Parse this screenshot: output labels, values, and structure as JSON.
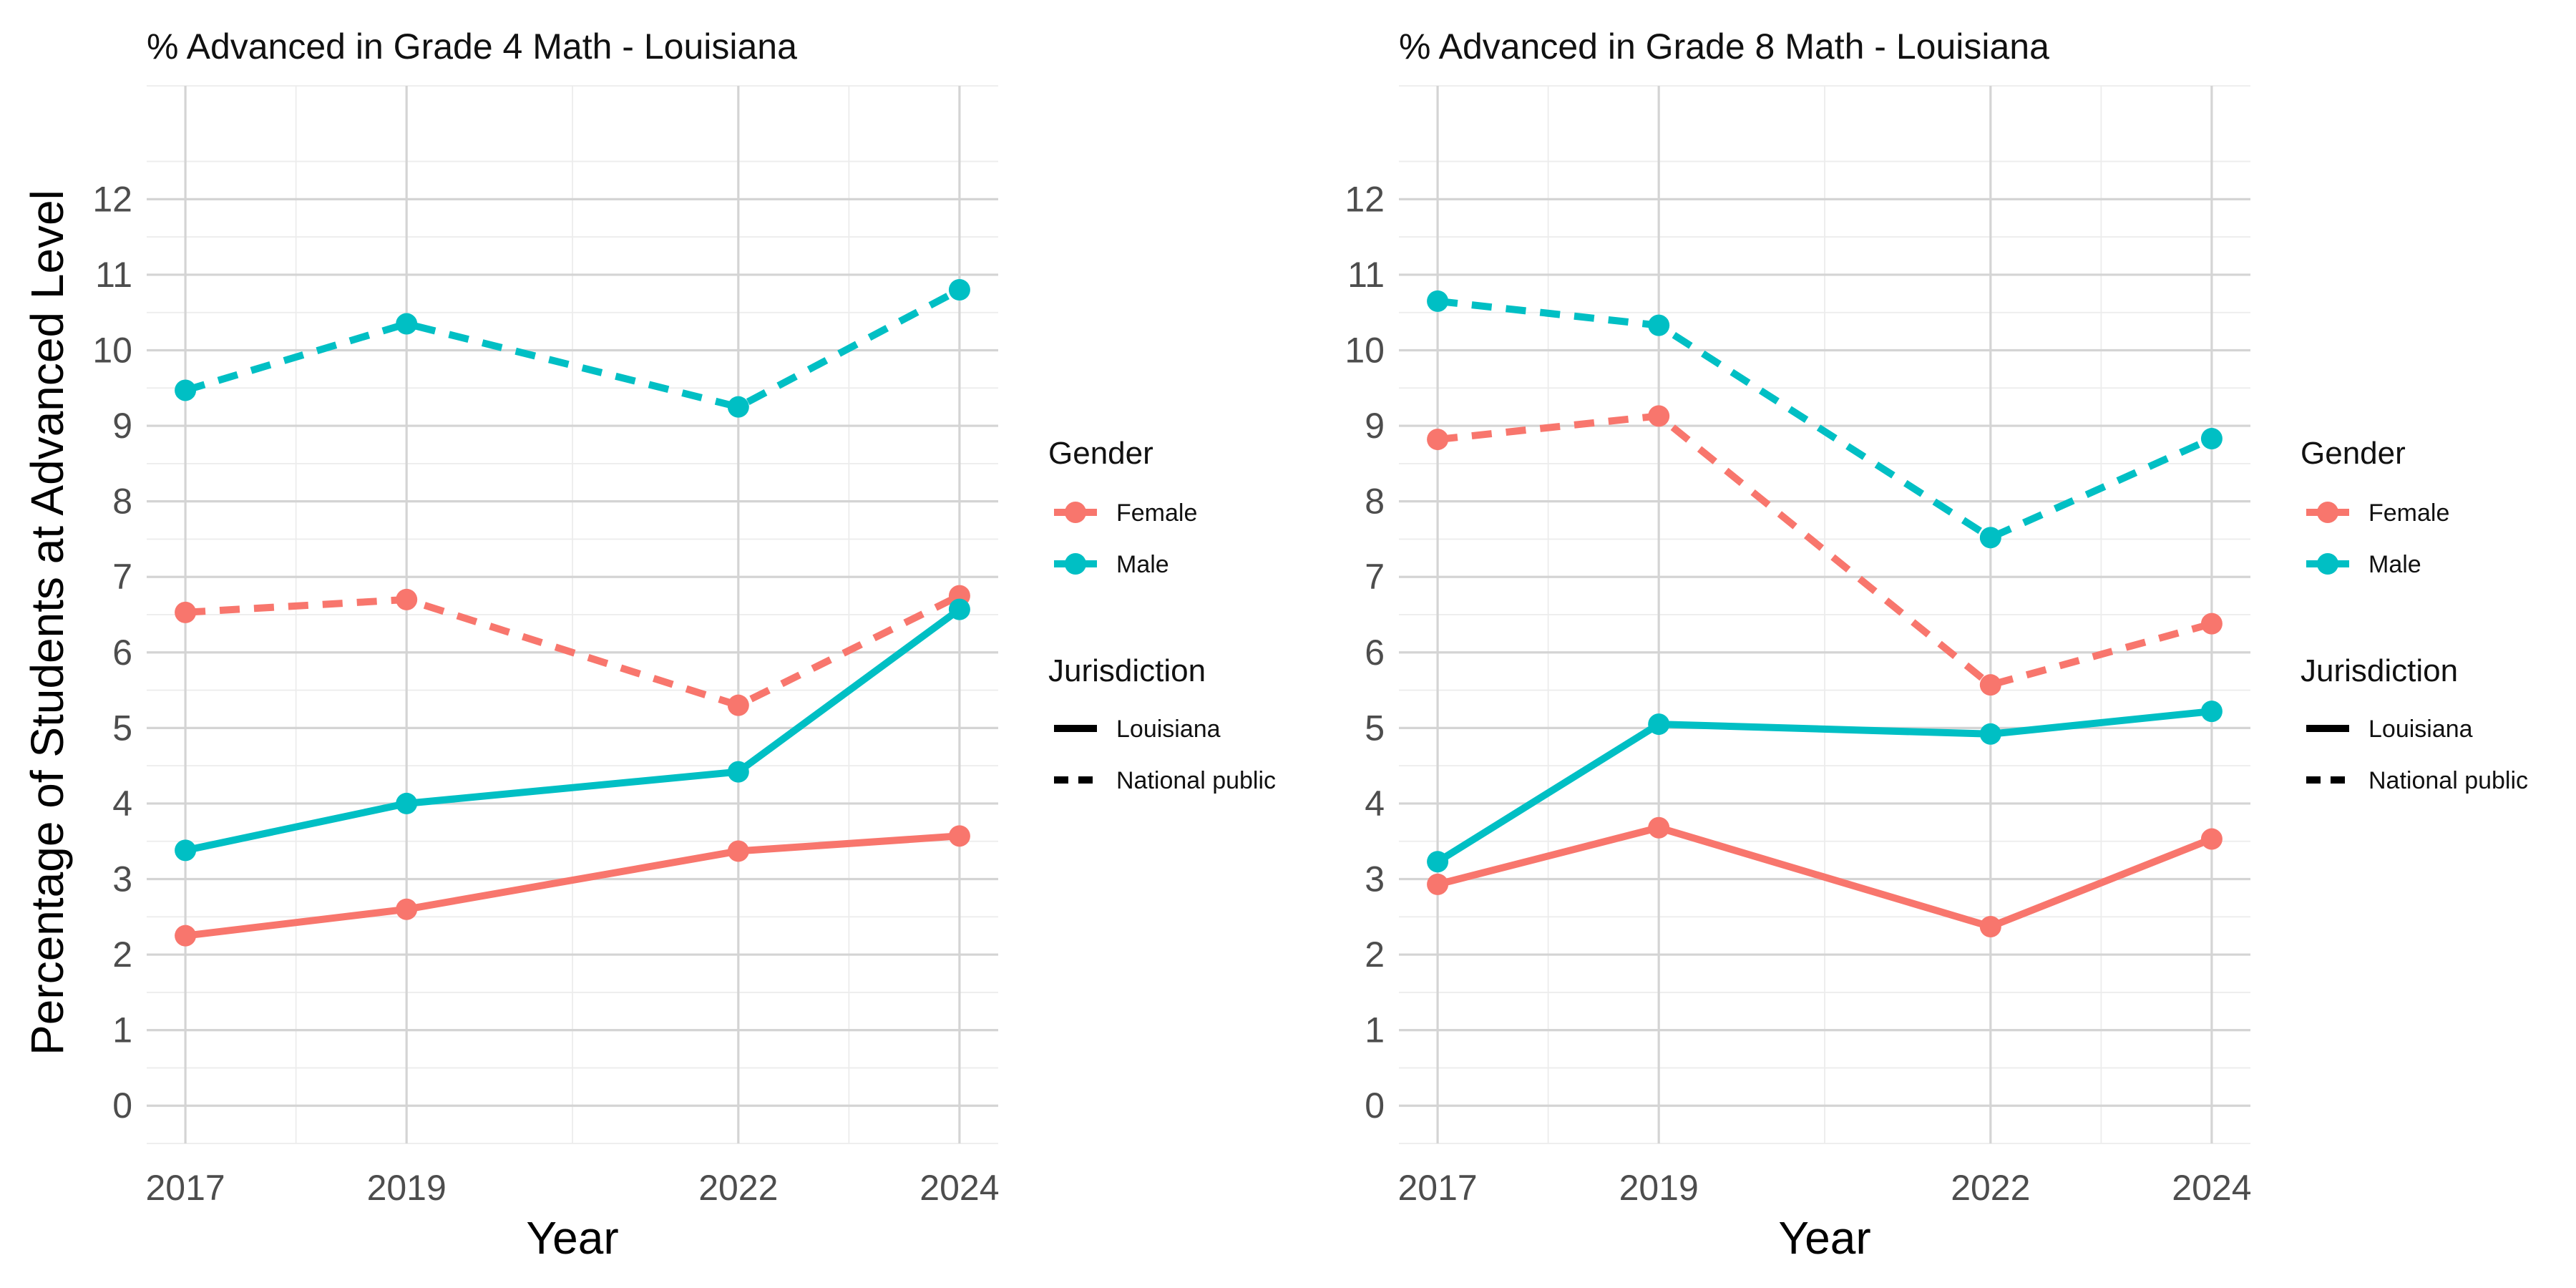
{
  "y_axis_label": "Percentage of Students at Advanced Level",
  "legend": {
    "gender_title": "Gender",
    "gender_items": [
      {
        "label": "Female",
        "color": "#F8766D"
      },
      {
        "label": "Male",
        "color": "#00BFC4"
      }
    ],
    "jurisdiction_title": "Jurisdiction",
    "jurisdiction_items": [
      {
        "label": "Louisiana",
        "linetype": "solid"
      },
      {
        "label": "National public",
        "linetype": "dashed"
      }
    ]
  },
  "chart_data": [
    {
      "type": "line",
      "title": "% Advanced in Grade 4 Math - Louisiana",
      "xlabel": "Year",
      "ylabel": "Percentage of Students at Advanced Level",
      "x_ticks": [
        2017,
        2019,
        2022,
        2024
      ],
      "y_ticks": [
        0,
        1,
        2,
        3,
        4,
        5,
        6,
        7,
        8,
        9,
        10,
        11,
        12
      ],
      "xlim": [
        2016.65,
        2024.35
      ],
      "ylim": [
        -0.5,
        13.5
      ],
      "x": [
        2017,
        2019,
        2022,
        2024
      ],
      "series": [
        {
          "gender": "Male",
          "jurisdiction": "National public",
          "color": "#00BFC4",
          "linetype": "dashed",
          "values": [
            9.47,
            10.35,
            9.25,
            10.8
          ]
        },
        {
          "gender": "Female",
          "jurisdiction": "National public",
          "color": "#F8766D",
          "linetype": "dashed",
          "values": [
            6.53,
            6.7,
            5.3,
            6.75
          ]
        },
        {
          "gender": "Male",
          "jurisdiction": "Louisiana",
          "color": "#00BFC4",
          "linetype": "solid",
          "values": [
            3.38,
            4.0,
            4.42,
            6.57
          ]
        },
        {
          "gender": "Female",
          "jurisdiction": "Louisiana",
          "color": "#F8766D",
          "linetype": "solid",
          "values": [
            2.25,
            2.6,
            3.37,
            3.57
          ]
        }
      ]
    },
    {
      "type": "line",
      "title": "% Advanced in Grade 8 Math - Louisiana",
      "xlabel": "Year",
      "ylabel": "",
      "x_ticks": [
        2017,
        2019,
        2022,
        2024
      ],
      "y_ticks": [
        0,
        1,
        2,
        3,
        4,
        5,
        6,
        7,
        8,
        9,
        10,
        11,
        12
      ],
      "xlim": [
        2016.65,
        2024.35
      ],
      "ylim": [
        -0.5,
        13.5
      ],
      "x": [
        2017,
        2019,
        2022,
        2024
      ],
      "series": [
        {
          "gender": "Male",
          "jurisdiction": "National public",
          "color": "#00BFC4",
          "linetype": "dashed",
          "values": [
            10.65,
            10.33,
            7.52,
            8.83
          ]
        },
        {
          "gender": "Female",
          "jurisdiction": "National public",
          "color": "#F8766D",
          "linetype": "dashed",
          "values": [
            8.82,
            9.13,
            5.57,
            6.38
          ]
        },
        {
          "gender": "Male",
          "jurisdiction": "Louisiana",
          "color": "#00BFC4",
          "linetype": "solid",
          "values": [
            3.23,
            5.05,
            4.92,
            5.22
          ]
        },
        {
          "gender": "Female",
          "jurisdiction": "Louisiana",
          "color": "#F8766D",
          "linetype": "solid",
          "values": [
            2.93,
            3.68,
            2.37,
            3.53
          ]
        }
      ]
    }
  ]
}
